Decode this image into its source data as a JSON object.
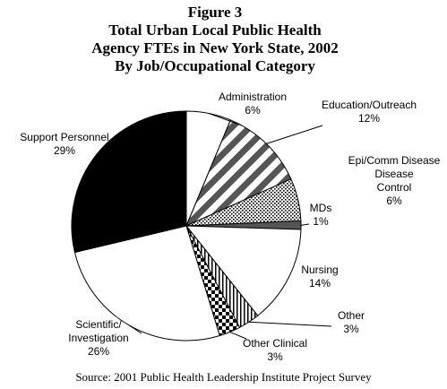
{
  "chart_data": {
    "type": "pie",
    "title_lines": [
      "Figure 3",
      "Total Urban Local Public Health",
      "Agency FTEs in New York State, 2002",
      "By Job/Occupational Category"
    ],
    "source": "Source:  2001 Public Health Leadership Institute Project Survey",
    "start_angle_deg": 0,
    "direction": "clockwise",
    "slices": [
      {
        "label_lines": [
          "Administration",
          "6%"
        ],
        "value": 6.3,
        "pattern": "white"
      },
      {
        "label_lines": [
          "Education/Outreach",
          "12%"
        ],
        "value": 12,
        "pattern": "wide-diagonal"
      },
      {
        "label_lines": [
          "Epi/Comm Disease",
          "Disease",
          "Control",
          "6%"
        ],
        "value": 6,
        "pattern": "dots"
      },
      {
        "label_lines": [
          "MDs",
          "1%"
        ],
        "value": 1.2,
        "pattern": "dark-gray"
      },
      {
        "label_lines": [
          "Nursing",
          "14%"
        ],
        "value": 13.8,
        "pattern": "white"
      },
      {
        "label_lines": [
          "Other",
          "3%"
        ],
        "value": 3,
        "pattern": "vertical-lines"
      },
      {
        "label_lines": [
          "Other Clinical",
          "3%"
        ],
        "value": 3,
        "pattern": "checker"
      },
      {
        "label_lines": [
          "Scientific/",
          "Investigation",
          "26%"
        ],
        "value": 26,
        "pattern": "white"
      },
      {
        "label_lines": [
          "Support Personnel",
          "29%"
        ],
        "value": 28.7,
        "pattern": "black"
      }
    ]
  }
}
